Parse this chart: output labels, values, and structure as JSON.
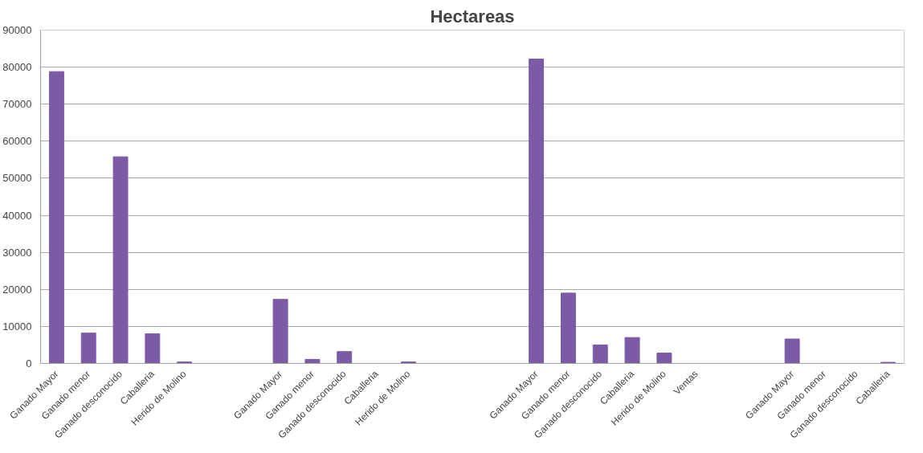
{
  "chart_data": {
    "type": "bar",
    "title": "Hectareas",
    "categories": [
      "Ganado Mayor",
      "Ganado menor",
      "Ganado desconocido",
      "Caballeria",
      "Herido de Molino",
      null,
      null,
      "Ganado Mayor",
      "Ganado menor",
      "Ganado desconocido",
      "Caballeria",
      "Herido de Molino",
      null,
      null,
      null,
      "Ganado Mayor",
      "Ganado menor",
      "Ganado desconocido",
      "Caballeria",
      "Herido de Molino",
      "Ventas",
      null,
      null,
      "Ganado Mayor",
      "Ganado menor",
      "Ganado desconocido",
      "Caballeria"
    ],
    "values": [
      78800,
      8200,
      55800,
      8000,
      400,
      null,
      null,
      17300,
      1100,
      3200,
      0,
      400,
      null,
      null,
      null,
      82200,
      19000,
      5000,
      7000,
      2800,
      0,
      null,
      null,
      6600,
      0,
      0,
      300
    ],
    "color": "#7b5aa6",
    "ylim": [
      0,
      90000
    ],
    "yticks": [
      0,
      10000,
      20000,
      30000,
      40000,
      50000,
      60000,
      70000,
      80000,
      90000
    ],
    "grid": "y"
  }
}
